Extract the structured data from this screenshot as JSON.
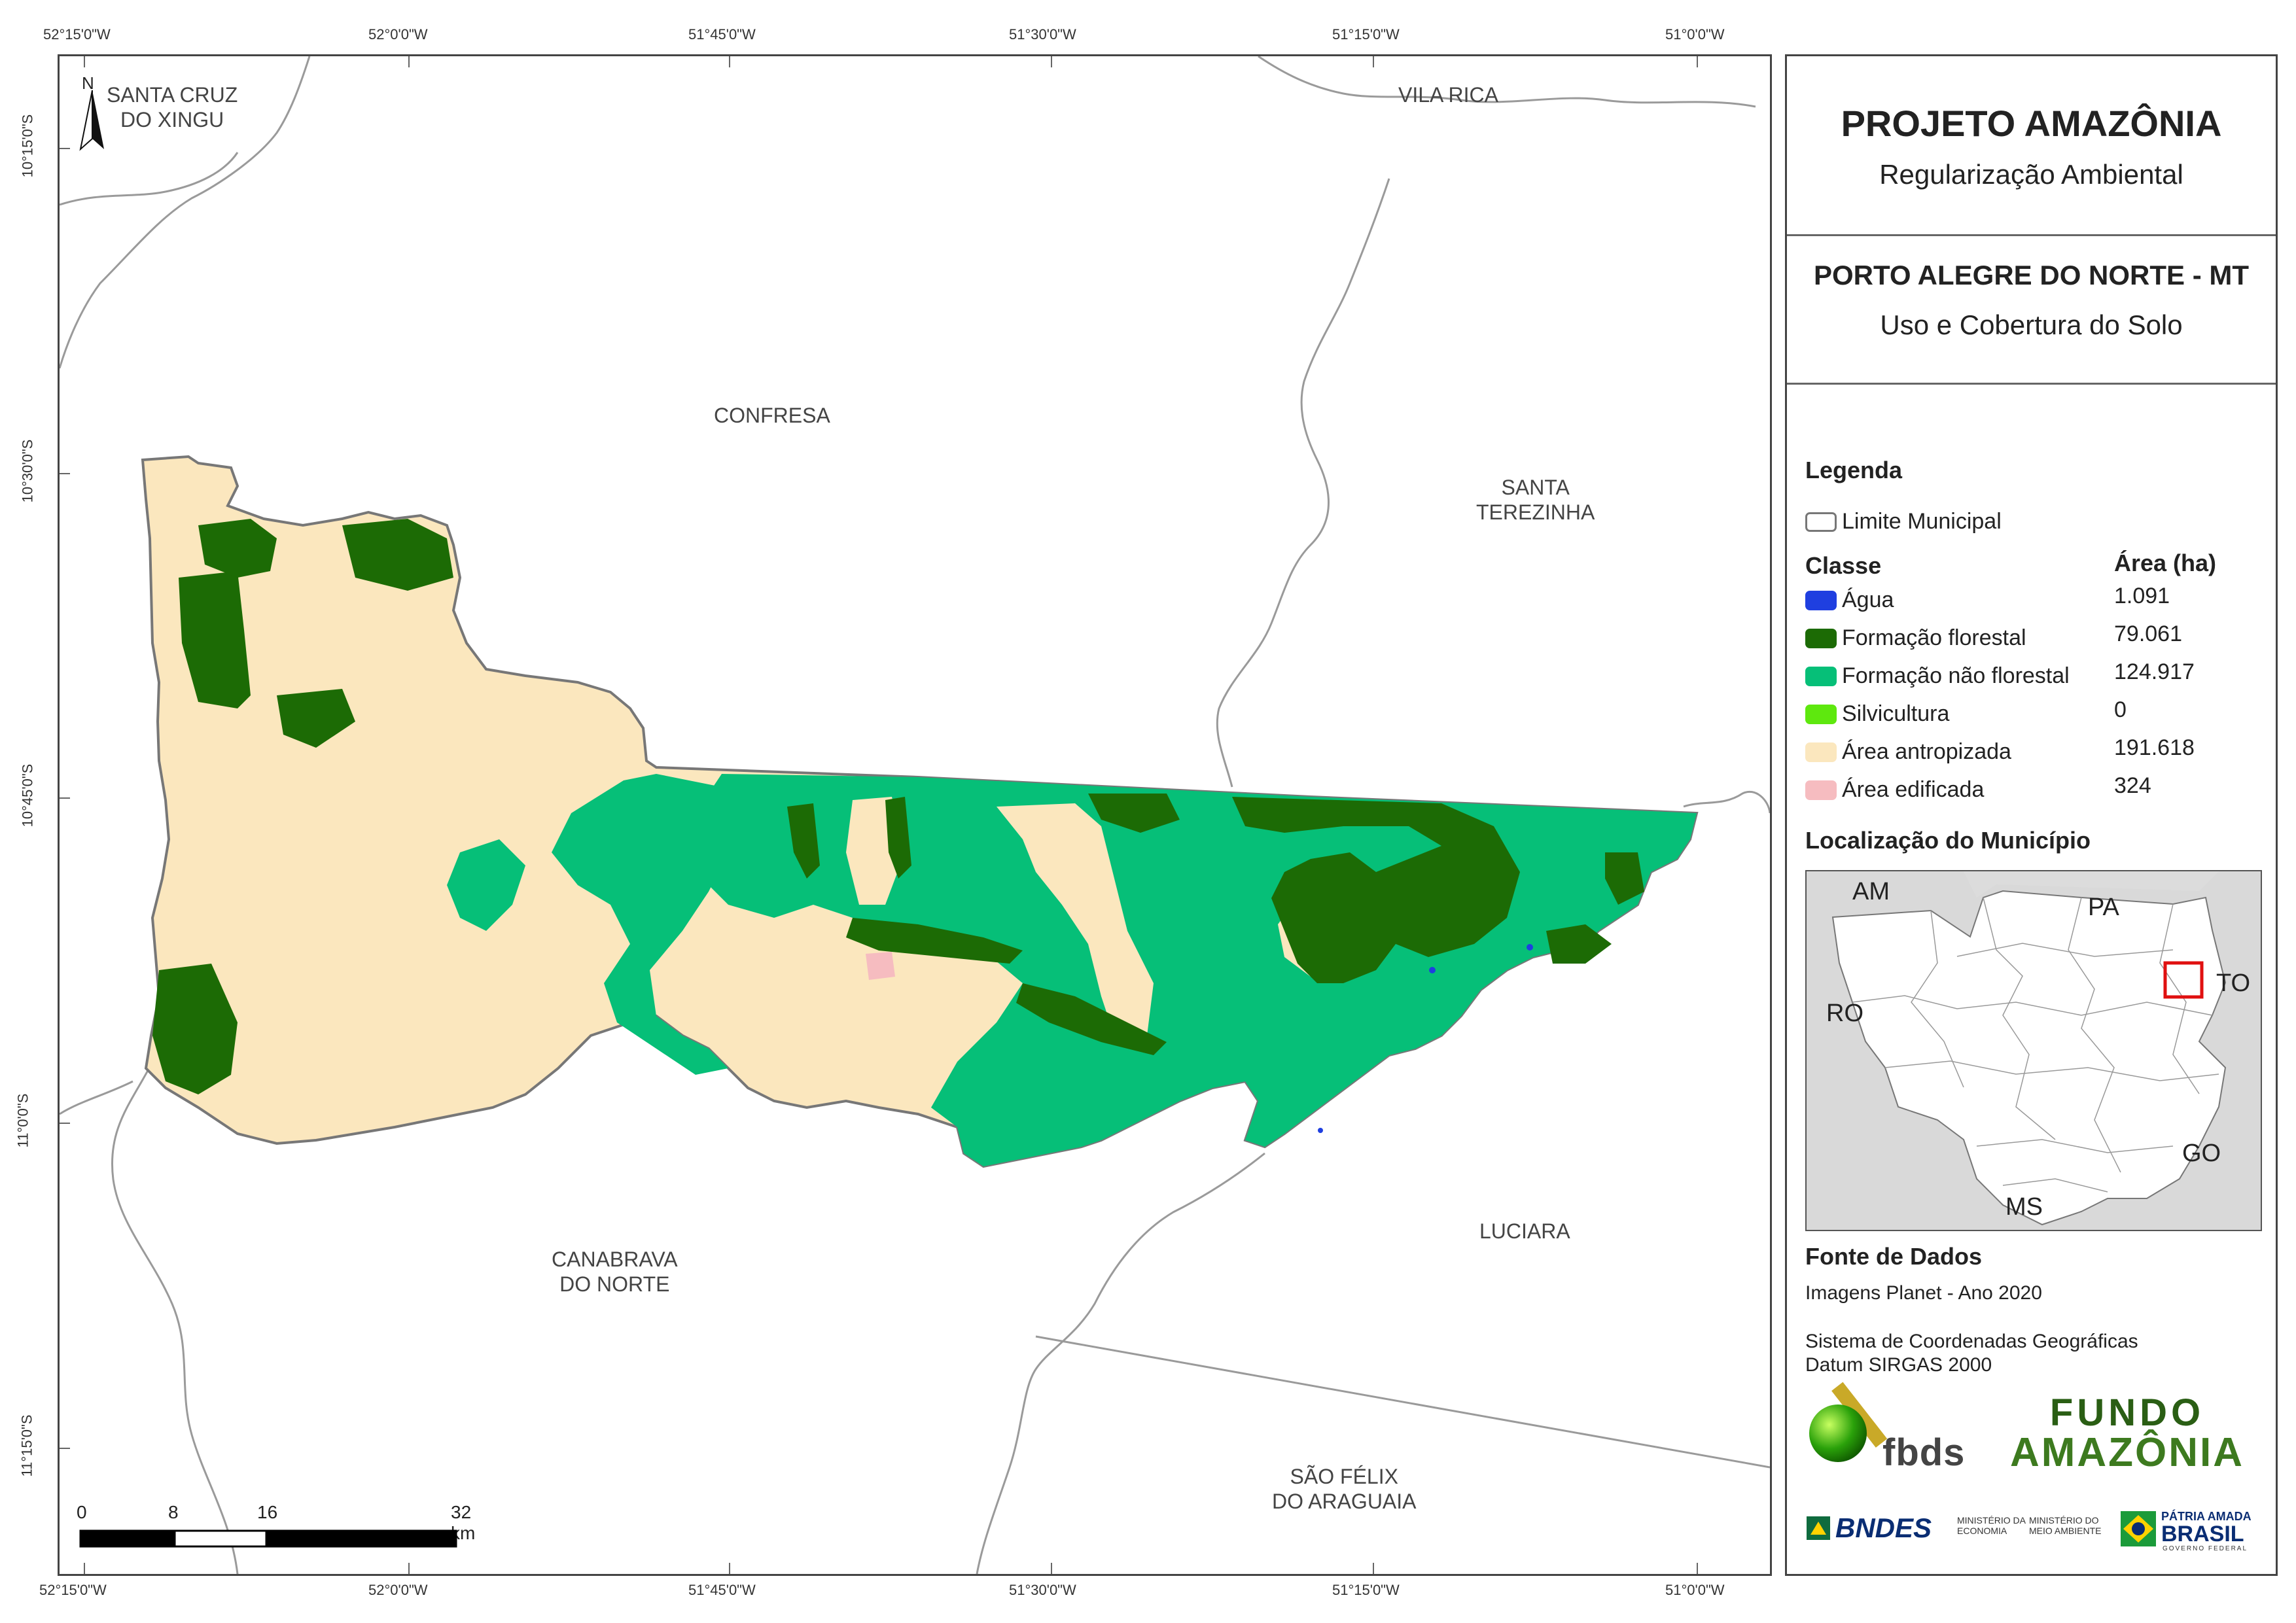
{
  "coords": {
    "top": [
      "52°15'0\"W",
      "52°0'0\"W",
      "51°45'0\"W",
      "51°30'0\"W",
      "51°15'0\"W",
      "51°0'0\"W"
    ],
    "bottom": [
      "52°15'0\"W",
      "52°0'0\"W",
      "51°45'0\"W",
      "51°30'0\"W",
      "51°15'0\"W",
      "51°0'0\"W"
    ],
    "left": [
      "10°15'0\"S",
      "10°30'0\"S",
      "10°45'0\"S",
      "11°0'0\"S",
      "11°15'0\"S"
    ]
  },
  "north_arrow": "N",
  "municipalities": {
    "santa_cruz": [
      "SANTA CRUZ",
      "DO XINGU"
    ],
    "vila_rica": "VILA RICA",
    "confresa": "CONFRESA",
    "santa_terezinha": [
      "SANTA",
      "TEREZINHA"
    ],
    "canabrava": [
      "CANABRAVA",
      "DO NORTE"
    ],
    "luciara": "LUCIARA",
    "sao_felix": [
      "SÃO FÉLIX",
      "DO ARAGUAIA"
    ]
  },
  "scale_bar": {
    "ticks": [
      "0",
      "8",
      "16",
      "32 km"
    ]
  },
  "panel": {
    "project_title": "PROJETO AMAZÔNIA",
    "project_subtitle": "Regularização Ambiental",
    "map_title": "PORTO ALEGRE DO NORTE - MT",
    "map_subtitle": "Uso e Cobertura do Solo",
    "legend_heading": "Legenda",
    "limit_label": "Limite Municipal",
    "class_heading": "Classe",
    "area_heading": "Área (ha)",
    "classes": [
      {
        "name": "Água",
        "area": "1.091",
        "color": "#1f3fe0"
      },
      {
        "name": "Formação florestal",
        "area": "79.061",
        "color": "#1c6b05"
      },
      {
        "name": "Formação não florestal",
        "area": "124.917",
        "color": "#06bf78"
      },
      {
        "name": "Silvicultura",
        "area": "0",
        "color": "#5ee80e"
      },
      {
        "name": "Área antropizada",
        "area": "191.618",
        "color": "#fbe7be"
      },
      {
        "name": "Área edificada",
        "area": "324",
        "color": "#f6bcc0"
      }
    ],
    "location_heading": "Localização do Município",
    "location_labels": {
      "am": "AM",
      "pa": "PA",
      "ro": "RO",
      "to": "TO",
      "go": "GO",
      "ms": "MS"
    },
    "source_heading": "Fonte de Dados",
    "source_text": "Imagens Planet - Ano 2020",
    "crs_line1": "Sistema de Coordenadas Geográficas",
    "crs_line2": "Datum SIRGAS 2000",
    "logos": {
      "fbds": "fbds",
      "fundo_line1": "FUNDO",
      "fundo_line2": "AMAZÔNIA",
      "bndes": "BNDES",
      "min_economia": [
        "MINISTÉRIO DA",
        "ECONOMIA"
      ],
      "min_meio": [
        "MINISTÉRIO DO",
        "MEIO AMBIENTE"
      ],
      "patria_line1": "PÁTRIA AMADA",
      "patria_line2": "BRASIL",
      "gov": "GOVERNO FEDERAL"
    }
  }
}
